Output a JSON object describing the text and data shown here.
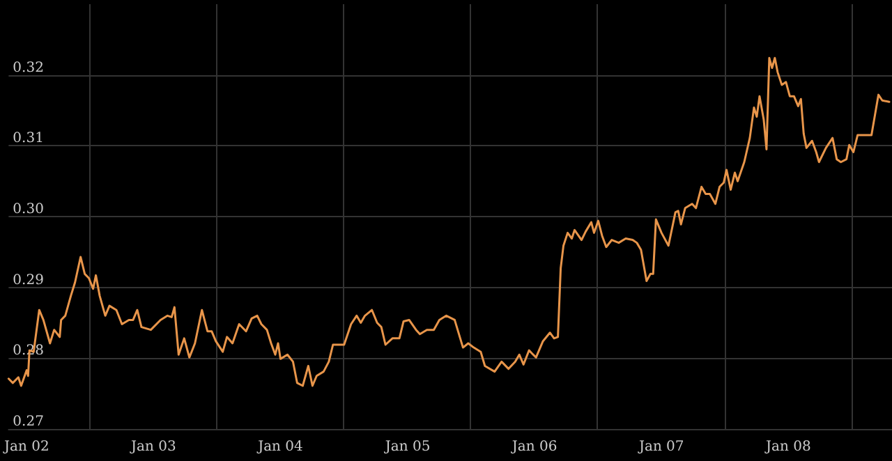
{
  "chart_data": {
    "type": "line",
    "x": [
      "2001-11-10",
      "2001-11-22",
      "2001-12-08",
      "2001-12-16",
      "2002-01-01",
      "2002-01-05",
      "2002-01-09",
      "2002-01-21",
      "2002-02-06",
      "2002-02-18",
      "2002-03-09",
      "2002-03-21",
      "2002-04-06",
      "2002-04-10",
      "2002-04-22",
      "2002-05-08",
      "2002-05-20",
      "2002-06-05",
      "2002-06-17",
      "2002-06-29",
      "2002-07-11",
      "2002-07-19",
      "2002-07-30",
      "2002-08-15",
      "2002-08-27",
      "2002-09-16",
      "2002-10-02",
      "2002-10-22",
      "2002-11-03",
      "2002-11-15",
      "2002-11-27",
      "2002-12-24",
      "2003-01-21",
      "2003-02-10",
      "2003-02-22",
      "2003-03-02",
      "2003-03-14",
      "2003-03-30",
      "2003-04-14",
      "2003-04-30",
      "2003-05-20",
      "2003-06-05",
      "2003-06-17",
      "2003-06-29",
      "2003-07-19",
      "2003-07-31",
      "2003-08-16",
      "2003-09-04",
      "2003-09-24",
      "2003-10-10",
      "2003-10-26",
      "2003-11-07",
      "2003-11-23",
      "2003-12-05",
      "2003-12-17",
      "2003-12-25",
      "2004-01-01",
      "2004-01-21",
      "2004-02-06",
      "2004-02-18",
      "2004-03-05",
      "2004-03-21",
      "2004-04-02",
      "2004-04-14",
      "2004-05-04",
      "2004-05-19",
      "2004-05-31",
      "2004-06-20",
      "2004-07-02",
      "2004-07-22",
      "2004-08-07",
      "2004-08-19",
      "2004-08-31",
      "2004-09-20",
      "2004-10-05",
      "2004-10-17",
      "2004-10-29",
      "2004-11-18",
      "2004-12-08",
      "2004-12-20",
      "2005-01-05",
      "2005-01-25",
      "2005-02-05",
      "2005-02-25",
      "2005-03-17",
      "2005-04-02",
      "2005-04-22",
      "2005-05-16",
      "2005-06-01",
      "2005-06-09",
      "2005-06-24",
      "2005-07-10",
      "2005-07-30",
      "2005-08-11",
      "2005-09-08",
      "2005-09-28",
      "2005-10-18",
      "2005-11-06",
      "2005-11-18",
      "2005-11-30",
      "2005-12-16",
      "2006-01-05",
      "2006-01-25",
      "2006-02-14",
      "2006-02-26",
      "2006-03-09",
      "2006-03-17",
      "2006-03-25",
      "2006-04-06",
      "2006-04-18",
      "2006-04-26",
      "2006-05-16",
      "2006-05-28",
      "2006-06-13",
      "2006-06-21",
      "2006-07-03",
      "2006-07-14",
      "2006-07-26",
      "2006-08-11",
      "2006-08-31",
      "2006-09-20",
      "2006-10-10",
      "2006-10-22",
      "2006-11-03",
      "2006-11-19",
      "2006-11-30",
      "2006-12-08",
      "2006-12-16",
      "2007-01-01",
      "2007-01-21",
      "2007-02-10",
      "2007-02-18",
      "2007-02-26",
      "2007-03-10",
      "2007-03-30",
      "2007-04-10",
      "2007-04-26",
      "2007-05-08",
      "2007-05-20",
      "2007-06-05",
      "2007-06-17",
      "2007-06-29",
      "2007-07-07",
      "2007-07-19",
      "2007-07-31",
      "2007-08-08",
      "2007-08-27",
      "2007-09-12",
      "2007-09-24",
      "2007-10-02",
      "2007-10-10",
      "2007-10-22",
      "2007-10-30",
      "2007-11-07",
      "2007-11-15",
      "2007-11-23",
      "2007-12-01",
      "2007-12-13",
      "2007-12-25",
      "2008-01-05",
      "2008-01-17",
      "2008-01-29",
      "2008-02-06",
      "2008-02-14",
      "2008-02-22",
      "2008-03-09",
      "2008-03-21",
      "2008-03-29",
      "2008-04-18",
      "2008-05-07",
      "2008-05-19",
      "2008-05-31",
      "2008-06-16",
      "2008-06-24",
      "2008-07-06",
      "2008-07-18",
      "2008-08-07",
      "2008-08-27",
      "2008-09-16",
      "2008-09-27",
      "2008-10-17"
    ],
    "series": [
      {
        "color": "#e8954a",
        "values": [
          0.2771,
          0.2765,
          0.2773,
          0.2761,
          0.2783,
          0.2775,
          0.2811,
          0.2809,
          0.2868,
          0.2854,
          0.2821,
          0.284,
          0.283,
          0.2854,
          0.286,
          0.2888,
          0.2907,
          0.2943,
          0.2919,
          0.2913,
          0.2898,
          0.2917,
          0.2888,
          0.286,
          0.2874,
          0.2868,
          0.2848,
          0.2854,
          0.2854,
          0.2868,
          0.2844,
          0.284,
          0.2854,
          0.286,
          0.2858,
          0.2872,
          0.2805,
          0.2828,
          0.2801,
          0.2821,
          0.2868,
          0.2838,
          0.2838,
          0.2824,
          0.2809,
          0.283,
          0.2821,
          0.2848,
          0.2838,
          0.2856,
          0.286,
          0.2848,
          0.284,
          0.2821,
          0.2805,
          0.2821,
          0.2799,
          0.2805,
          0.2795,
          0.2765,
          0.2761,
          0.2789,
          0.2761,
          0.2775,
          0.2781,
          0.2795,
          0.2819,
          0.2819,
          0.2819,
          0.2848,
          0.286,
          0.285,
          0.286,
          0.2868,
          0.285,
          0.2844,
          0.2819,
          0.2828,
          0.2828,
          0.2852,
          0.2854,
          0.284,
          0.2834,
          0.284,
          0.284,
          0.2854,
          0.286,
          0.2854,
          0.2828,
          0.2815,
          0.2821,
          0.2815,
          0.2809,
          0.2789,
          0.2781,
          0.2795,
          0.2785,
          0.2795,
          0.2805,
          0.2791,
          0.2811,
          0.2801,
          0.2824,
          0.2836,
          0.2828,
          0.283,
          0.2927,
          0.2959,
          0.2977,
          0.2969,
          0.2981,
          0.2967,
          0.2979,
          0.2992,
          0.2977,
          0.2994,
          0.2973,
          0.2957,
          0.2967,
          0.2963,
          0.2969,
          0.2967,
          0.2963,
          0.2953,
          0.2909,
          0.2919,
          0.2919,
          0.2996,
          0.2977,
          0.2959,
          0.3006,
          0.3008,
          0.2989,
          0.3012,
          0.3018,
          0.3012,
          0.3042,
          0.3032,
          0.3032,
          0.3018,
          0.3042,
          0.3048,
          0.3066,
          0.3038,
          0.3062,
          0.305,
          0.3077,
          0.3111,
          0.3154,
          0.3141,
          0.317,
          0.3137,
          0.3095,
          0.3224,
          0.321,
          0.3224,
          0.3204,
          0.3186,
          0.319,
          0.317,
          0.317,
          0.3156,
          0.3166,
          0.3117,
          0.3097,
          0.3107,
          0.3091,
          0.3077,
          0.3097,
          0.3111,
          0.3081,
          0.3077,
          0.3081,
          0.3101,
          0.3091,
          0.3115,
          0.3115,
          0.3115,
          0.3172,
          0.3164,
          0.3162
        ]
      }
    ],
    "xlim": [
      "2001-11-10",
      "2008-10-25"
    ],
    "xticks": [
      {
        "value": "2002-01-01",
        "label": "Jan 02"
      },
      {
        "value": "2002-07-01",
        "label": null
      },
      {
        "value": "2003-01-01",
        "label": "Jan 03"
      },
      {
        "value": "2003-07-01",
        "label": null
      },
      {
        "value": "2004-01-01",
        "label": "Jan 04"
      },
      {
        "value": "2004-07-01",
        "label": null
      },
      {
        "value": "2005-01-01",
        "label": "Jan 05"
      },
      {
        "value": "2005-07-01",
        "label": null
      },
      {
        "value": "2006-01-01",
        "label": "Jan 06"
      },
      {
        "value": "2006-07-01",
        "label": null
      },
      {
        "value": "2007-01-01",
        "label": "Jan 07"
      },
      {
        "value": "2007-07-01",
        "label": null
      },
      {
        "value": "2008-01-01",
        "label": "Jan 08"
      },
      {
        "value": "2008-07-01",
        "label": null
      }
    ],
    "ylim": [
      0.27,
      0.33
    ],
    "yticks": [
      0.27,
      0.28,
      0.29,
      {
        "value": 0.3,
        "label": "0.30"
      },
      0.31,
      0.32
    ],
    "grid": true,
    "marker": "none",
    "line_style": "solid"
  }
}
